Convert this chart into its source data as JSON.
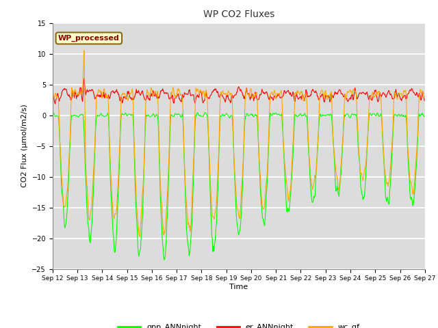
{
  "title": "WP CO2 Fluxes",
  "xlabel": "Time",
  "ylabel": "CO2 Flux (μmol/m2/s)",
  "ylim": [
    -25,
    15
  ],
  "annotation_text": "WP_processed",
  "annotation_color": "#8B0000",
  "annotation_bg": "#FFFFCC",
  "annotation_border": "#8B6914",
  "gpp_color": "#00FF00",
  "er_color": "#FF0000",
  "wc_color": "#FFA500",
  "figure_bg": "#FFFFFF",
  "plot_bg": "#DCDCDC",
  "grid_color": "#FFFFFF",
  "legend_labels": [
    "gpp_ANNnight",
    "er_ANNnight",
    "wc_gf"
  ],
  "yticks": [
    -25,
    -20,
    -15,
    -10,
    -5,
    0,
    5,
    10,
    15
  ],
  "n_days": 15,
  "points_per_day": 48
}
